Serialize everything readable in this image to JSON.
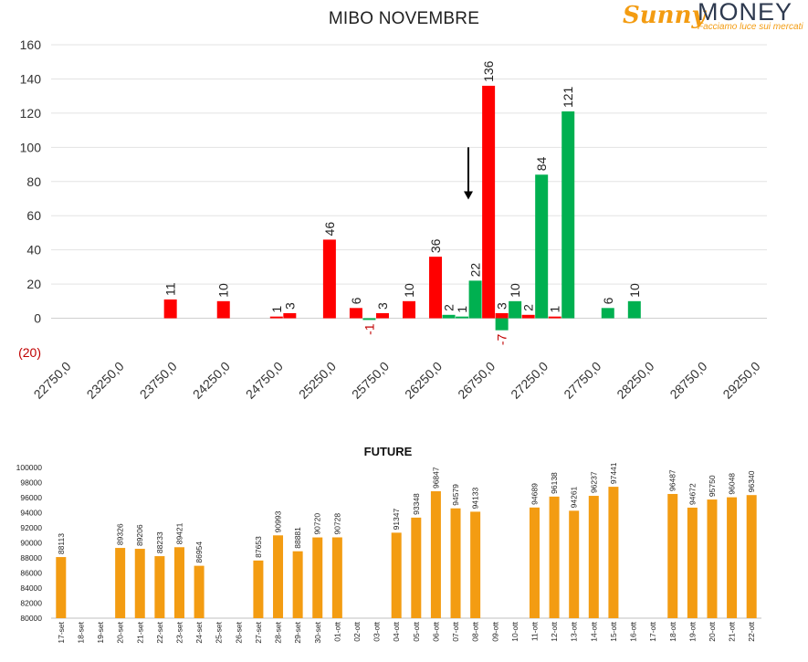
{
  "logo": {
    "brand_a": "Sunny",
    "brand_b": "MONEY",
    "tagline": "Facciamo luce sui mercati"
  },
  "chart_data": [
    {
      "type": "bar",
      "title": "MIBO NOVEMBRE",
      "ylim": [
        -20,
        160
      ],
      "y_ticks": [
        -20,
        0,
        20,
        40,
        60,
        80,
        100,
        120,
        140,
        160
      ],
      "y_tick_labels": [
        "(20)",
        "0",
        "20",
        "40",
        "60",
        "80",
        "100",
        "120",
        "140",
        "160"
      ],
      "x_tick_labels": [
        "22750,0",
        "23250,0",
        "23750,0",
        "24250,0",
        "24750,0",
        "25250,0",
        "25750,0",
        "26250,0",
        "26750,0",
        "27250,0",
        "27750,0",
        "28250,0",
        "28750,0",
        "29250,0"
      ],
      "grid": true,
      "series": [
        {
          "color": "#ff0000",
          "points": [
            {
              "x": 23750,
              "y": 11
            },
            {
              "x": 24250,
              "y": 10
            },
            {
              "x": 24750,
              "y": 1
            },
            {
              "x": 24875,
              "y": 3
            },
            {
              "x": 25250,
              "y": 46
            },
            {
              "x": 25500,
              "y": 6
            },
            {
              "x": 25750,
              "y": 3
            },
            {
              "x": 26000,
              "y": 10
            },
            {
              "x": 26250,
              "y": 36
            },
            {
              "x": 26750,
              "y": 136
            },
            {
              "x": 26875,
              "y": 3
            },
            {
              "x": 27125,
              "y": 2
            },
            {
              "x": 27375,
              "y": 1
            }
          ]
        },
        {
          "color": "#00b050",
          "points": [
            {
              "x": 25625,
              "y": -1
            },
            {
              "x": 26375,
              "y": 2
            },
            {
              "x": 26500,
              "y": 1
            },
            {
              "x": 26625,
              "y": 22
            },
            {
              "x": 26875,
              "y": -7
            },
            {
              "x": 27000,
              "y": 10
            },
            {
              "x": 27250,
              "y": 84
            },
            {
              "x": 27500,
              "y": 121
            },
            {
              "x": 27875,
              "y": 6
            },
            {
              "x": 28125,
              "y": 10
            }
          ]
        }
      ],
      "annotation": "down-arrow"
    },
    {
      "type": "bar",
      "title": "FUTURE",
      "ylim": [
        80000,
        100000
      ],
      "y_ticks": [
        80000,
        82000,
        84000,
        86000,
        88000,
        90000,
        92000,
        94000,
        96000,
        98000,
        100000
      ],
      "color": "#f39c12",
      "categories": [
        "17-set",
        "18-set",
        "19-set",
        "20-set",
        "21-set",
        "22-set",
        "23-set",
        "24-set",
        "25-set",
        "26-set",
        "27-set",
        "28-set",
        "29-set",
        "30-set",
        "01-ott",
        "02-ott",
        "03-ott",
        "04-ott",
        "05-ott",
        "06-ott",
        "07-ott",
        "08-ott",
        "09-ott",
        "10-ott",
        "11-ott",
        "12-ott",
        "13-ott",
        "14-ott",
        "15-ott",
        "16-ott",
        "17-ott",
        "18-ott",
        "19-ott",
        "20-ott",
        "21-ott",
        "22-ott"
      ],
      "values": [
        88113,
        null,
        null,
        89326,
        89206,
        88233,
        89421,
        86954,
        null,
        null,
        87653,
        90993,
        88881,
        90720,
        90728,
        null,
        null,
        91347,
        93348,
        96847,
        94579,
        94133,
        null,
        null,
        94689,
        96138,
        94261,
        96237,
        97441,
        null,
        null,
        96487,
        94672,
        95750,
        96048,
        96340
      ]
    }
  ]
}
